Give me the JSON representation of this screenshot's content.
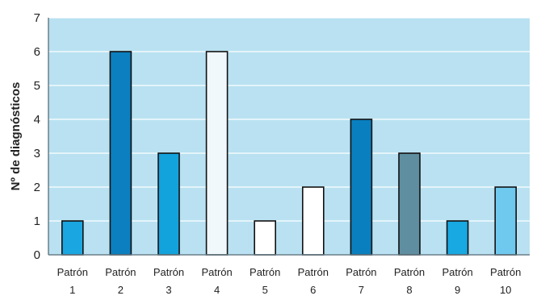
{
  "chart_data": {
    "type": "bar",
    "title": "",
    "xlabel": "",
    "ylabel": "Nº de diagnósticos",
    "ylim": [
      0,
      7
    ],
    "yticks": [
      0,
      1,
      2,
      3,
      4,
      5,
      6,
      7
    ],
    "grid": true,
    "categories": [
      [
        "Patrón",
        "1"
      ],
      [
        "Patrón",
        "2"
      ],
      [
        "Patrón",
        "3"
      ],
      [
        "Patrón",
        "4"
      ],
      [
        "Patrón",
        "5"
      ],
      [
        "Patrón",
        "6"
      ],
      [
        "Patrón",
        "7"
      ],
      [
        "Patrón",
        "8"
      ],
      [
        "Patrón",
        "9"
      ],
      [
        "Patrón",
        "10"
      ]
    ],
    "values": [
      1,
      6,
      3,
      6,
      1,
      2,
      4,
      3,
      1,
      2
    ],
    "colors": [
      "#1aa6e0",
      "#0b7fc0",
      "#12a2dc",
      "#f1f8fb",
      "#ffffff",
      "#ffffff",
      "#0a7fbf",
      "#5e8ea0",
      "#18a8e2",
      "#6fc9ef"
    ],
    "plot_background": "#b9e1f1"
  }
}
